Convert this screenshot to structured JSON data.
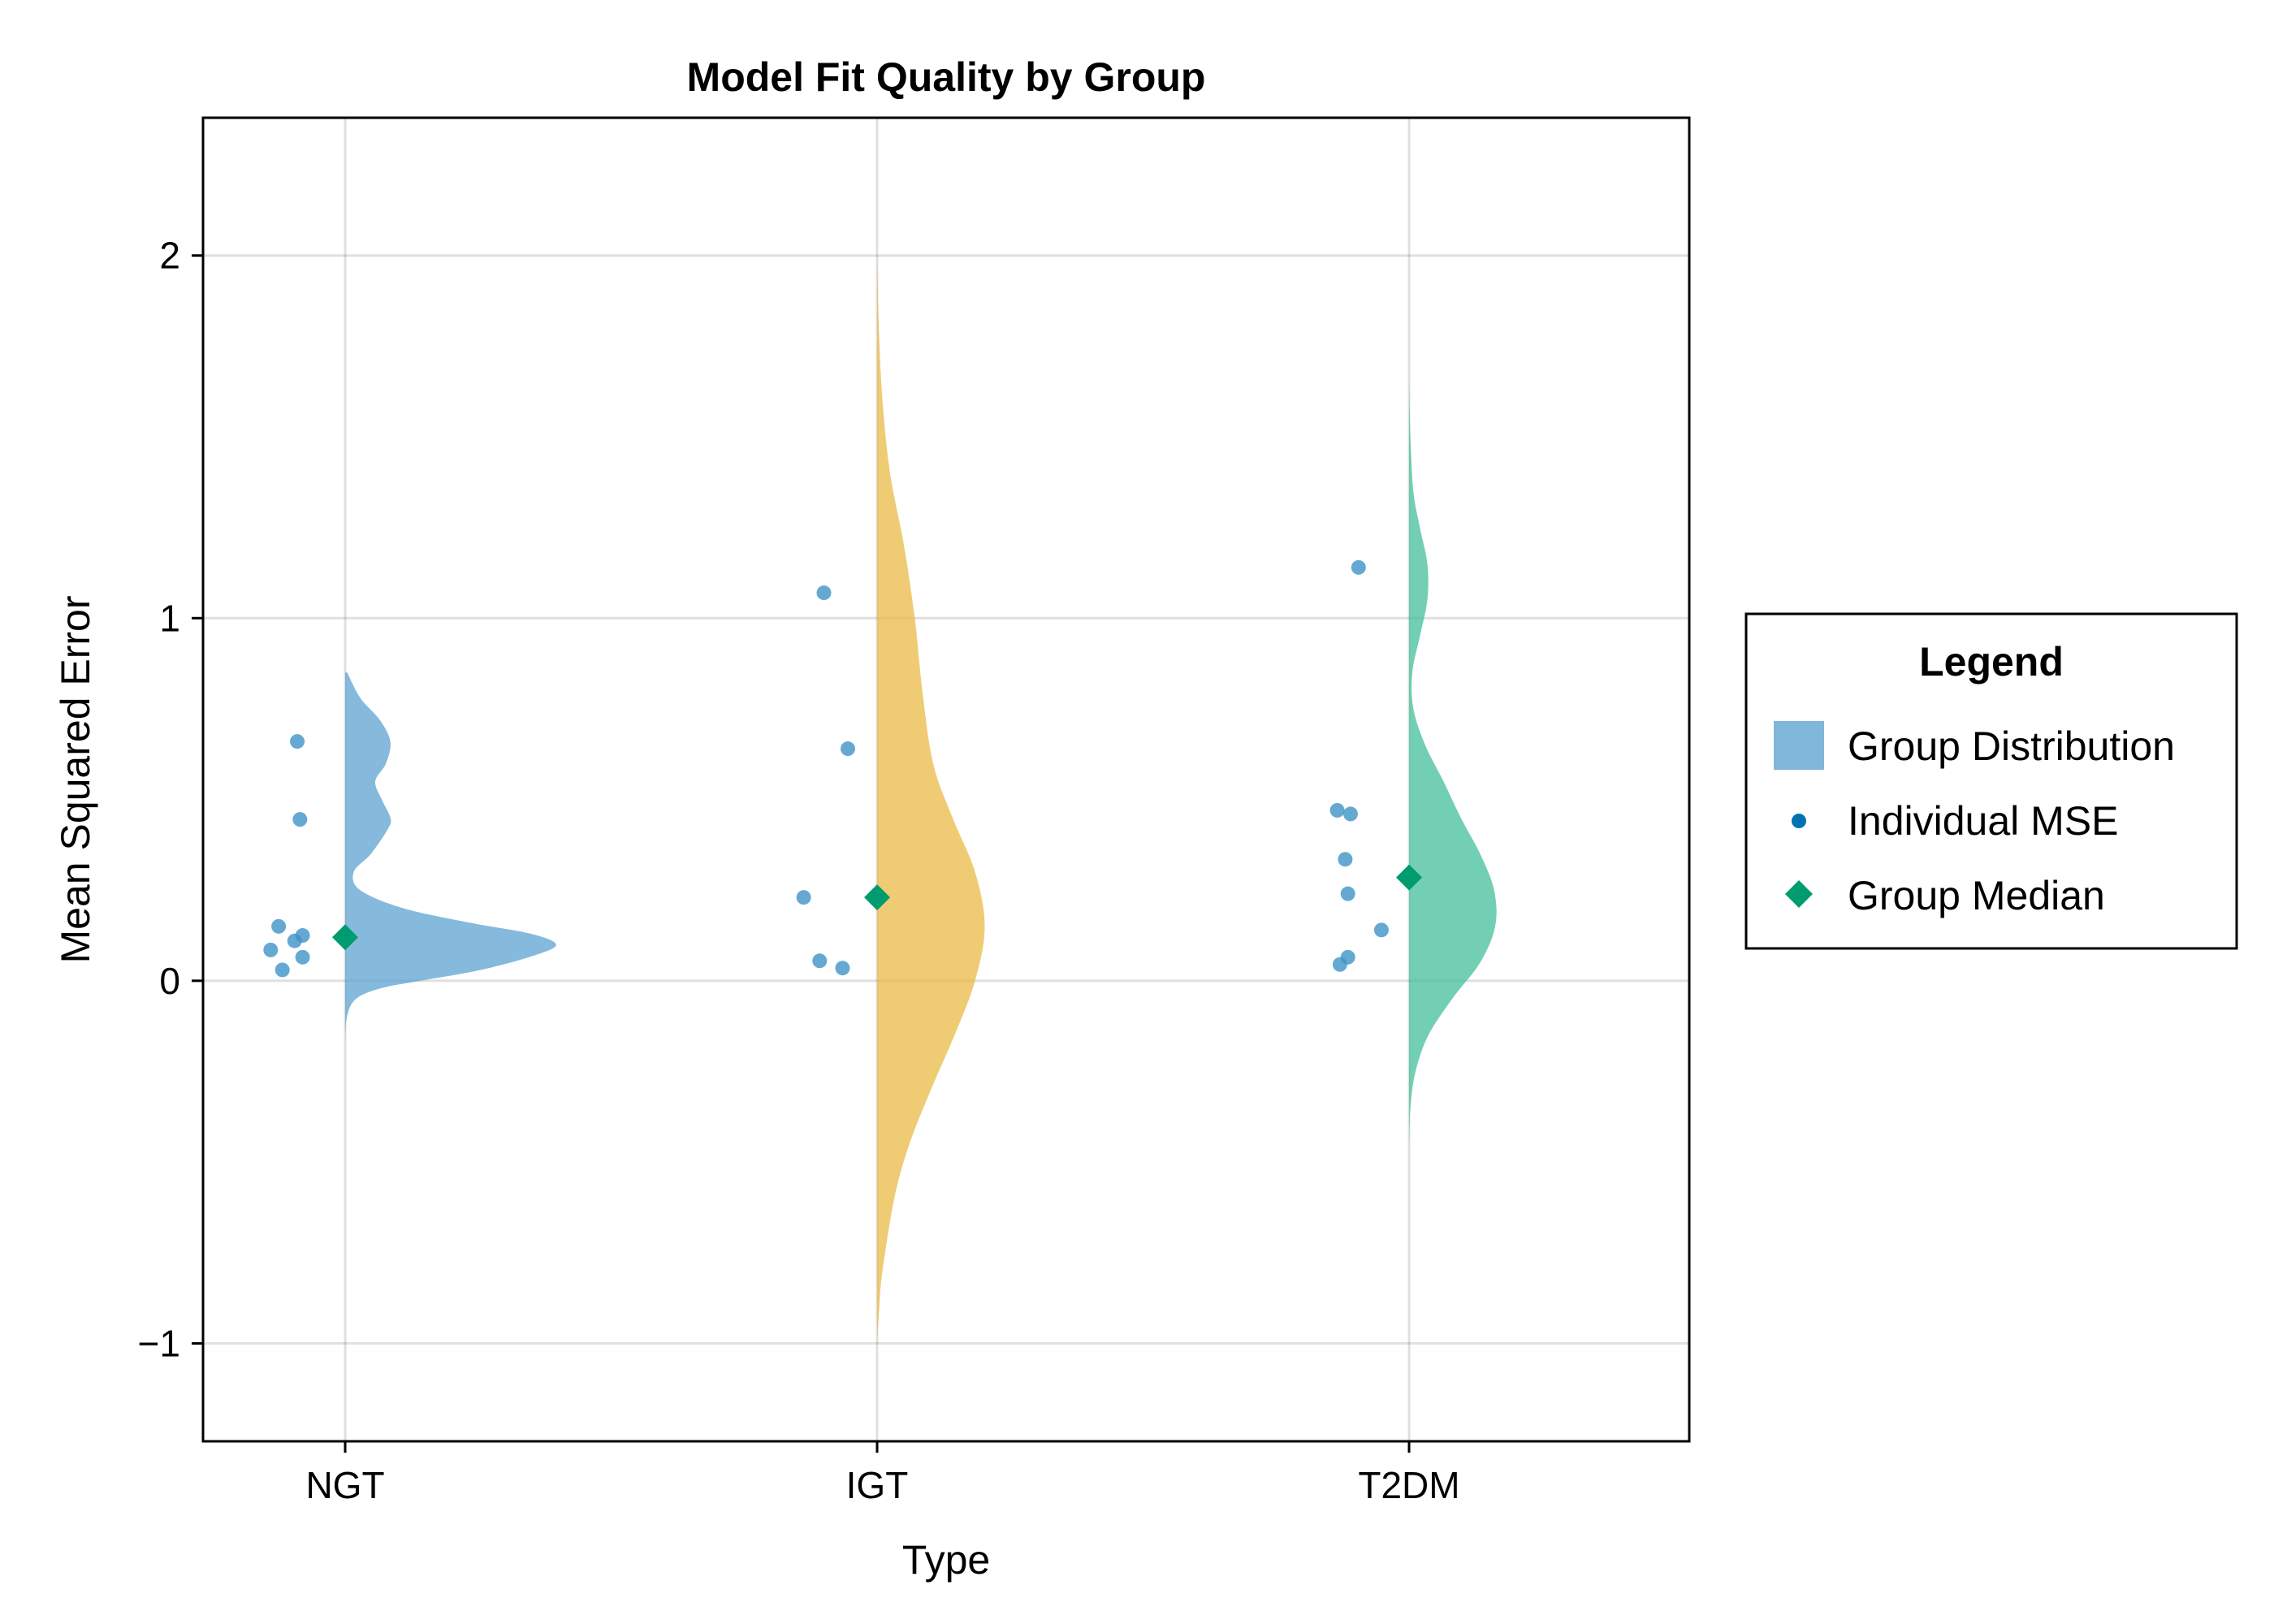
{
  "chart_data": {
    "type": "violin",
    "title": "Model Fit Quality by Group",
    "xlabel": "Type",
    "ylabel": "Mean Squared Error",
    "categories": [
      "NGT",
      "IGT",
      "T2DM"
    ],
    "ylim": [
      -1.27,
      2.38
    ],
    "yticks": [
      -1,
      0,
      1,
      2
    ],
    "ytick_labels": [
      "−1",
      "0",
      "1",
      "2"
    ],
    "grid": true,
    "legend": {
      "title": "Legend",
      "placement": "right",
      "entries": [
        {
          "label": "Group Distribution",
          "kind": "patch"
        },
        {
          "label": "Individual MSE",
          "kind": "dot"
        },
        {
          "label": "Group Median",
          "kind": "diamond"
        }
      ]
    },
    "colors": {
      "NGT": "#56a0d0",
      "IGT": "#e9b73f",
      "T2DM": "#3bbc97",
      "points": "#3f93c8",
      "median": "#009b6e",
      "legend_patch": "#7fb6d9",
      "legend_dot": "#0072b2"
    },
    "series": [
      {
        "category": "NGT",
        "median": 0.12,
        "points": [
          {
            "x_jitter": -0.09,
            "y": 0.66
          },
          {
            "x_jitter": -0.085,
            "y": 0.445
          },
          {
            "x_jitter": -0.125,
            "y": 0.15
          },
          {
            "x_jitter": -0.08,
            "y": 0.125
          },
          {
            "x_jitter": -0.095,
            "y": 0.11
          },
          {
            "x_jitter": -0.14,
            "y": 0.085
          },
          {
            "x_jitter": -0.08,
            "y": 0.065
          },
          {
            "x_jitter": -0.118,
            "y": 0.03
          }
        ],
        "density": [
          [
            -0.17,
            0
          ],
          [
            -0.1,
            0.008
          ],
          [
            -0.05,
            0.05
          ],
          [
            -0.02,
            0.17
          ],
          [
            0.0,
            0.35
          ],
          [
            0.03,
            0.63
          ],
          [
            0.07,
            0.88
          ],
          [
            0.1,
            0.98
          ],
          [
            0.13,
            0.86
          ],
          [
            0.16,
            0.58
          ],
          [
            0.2,
            0.27
          ],
          [
            0.25,
            0.07
          ],
          [
            0.3,
            0.04
          ],
          [
            0.35,
            0.12
          ],
          [
            0.42,
            0.2
          ],
          [
            0.45,
            0.21
          ],
          [
            0.5,
            0.17
          ],
          [
            0.55,
            0.14
          ],
          [
            0.6,
            0.19
          ],
          [
            0.66,
            0.21
          ],
          [
            0.72,
            0.16
          ],
          [
            0.78,
            0.07
          ],
          [
            0.85,
            0.01
          ]
        ]
      },
      {
        "category": "IGT",
        "median": 0.23,
        "points": [
          {
            "x_jitter": -0.1,
            "y": 1.07
          },
          {
            "x_jitter": -0.055,
            "y": 0.64
          },
          {
            "x_jitter": -0.138,
            "y": 0.23
          },
          {
            "x_jitter": -0.108,
            "y": 0.055
          },
          {
            "x_jitter": -0.065,
            "y": 0.035
          }
        ],
        "density": [
          [
            -1.0,
            0
          ],
          [
            -0.9,
            0.01
          ],
          [
            -0.8,
            0.025
          ],
          [
            -0.6,
            0.08
          ],
          [
            -0.45,
            0.15
          ],
          [
            -0.3,
            0.25
          ],
          [
            -0.15,
            0.36
          ],
          [
            0.0,
            0.455
          ],
          [
            0.15,
            0.5
          ],
          [
            0.3,
            0.455
          ],
          [
            0.45,
            0.35
          ],
          [
            0.6,
            0.26
          ],
          [
            0.8,
            0.21
          ],
          [
            1.0,
            0.175
          ],
          [
            1.2,
            0.125
          ],
          [
            1.4,
            0.06
          ],
          [
            1.6,
            0.025
          ],
          [
            1.8,
            0.008
          ],
          [
            2.0,
            0
          ]
        ]
      },
      {
        "category": "T2DM",
        "median": 0.285,
        "points": [
          {
            "x_jitter": -0.095,
            "y": 1.14
          },
          {
            "x_jitter": -0.135,
            "y": 0.47
          },
          {
            "x_jitter": -0.11,
            "y": 0.46
          },
          {
            "x_jitter": -0.12,
            "y": 0.335
          },
          {
            "x_jitter": -0.115,
            "y": 0.24
          },
          {
            "x_jitter": -0.052,
            "y": 0.14
          },
          {
            "x_jitter": -0.115,
            "y": 0.065
          },
          {
            "x_jitter": -0.13,
            "y": 0.045
          }
        ],
        "density": [
          [
            -0.45,
            0
          ],
          [
            -0.35,
            0.006
          ],
          [
            -0.25,
            0.03
          ],
          [
            -0.15,
            0.09
          ],
          [
            -0.05,
            0.2
          ],
          [
            0.05,
            0.33
          ],
          [
            0.15,
            0.4
          ],
          [
            0.25,
            0.395
          ],
          [
            0.35,
            0.33
          ],
          [
            0.45,
            0.24
          ],
          [
            0.55,
            0.16
          ],
          [
            0.65,
            0.075
          ],
          [
            0.75,
            0.02
          ],
          [
            0.85,
            0.015
          ],
          [
            0.95,
            0.05
          ],
          [
            1.05,
            0.085
          ],
          [
            1.15,
            0.085
          ],
          [
            1.25,
            0.05
          ],
          [
            1.35,
            0.02
          ],
          [
            1.5,
            0.006
          ],
          [
            1.65,
            0
          ]
        ]
      }
    ]
  }
}
